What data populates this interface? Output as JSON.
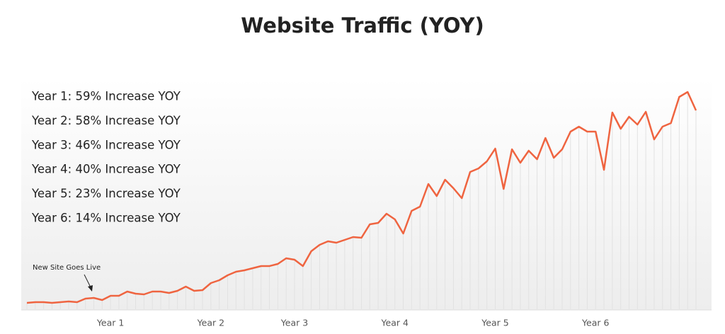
{
  "chart_data": {
    "type": "line",
    "title": "Website Traffic (YOY)",
    "annotations": [
      "Year 1:  59% Increase YOY",
      "Year 2:  58% Increase YOY",
      "Year 3:  46% Increase YOY",
      "Year 4:  40% Increase YOY",
      "Year 5:  23% Increase YOY",
      "Year 6:  14% Increase YOY"
    ],
    "callout": "New Site Goes Live",
    "categories": [
      null,
      null,
      null,
      null,
      null,
      null,
      null,
      null,
      null,
      null,
      "Year 1",
      null,
      null,
      null,
      null,
      null,
      null,
      null,
      null,
      null,
      null,
      null,
      "Year 2",
      null,
      null,
      null,
      null,
      null,
      null,
      null,
      null,
      null,
      "Year 3",
      null,
      null,
      null,
      null,
      null,
      null,
      null,
      null,
      null,
      null,
      null,
      "Year 4",
      null,
      null,
      null,
      null,
      null,
      null,
      null,
      null,
      null,
      null,
      null,
      "Year 5",
      null,
      null,
      null,
      null,
      null,
      null,
      null,
      null,
      null,
      null,
      null,
      "Year 6",
      null,
      null,
      null,
      null,
      null,
      null,
      null,
      null,
      null,
      null,
      null,
      null
    ],
    "series": [
      {
        "name": "Traffic",
        "color": "#ef6440",
        "values": [
          9,
          10,
          10,
          9,
          10,
          11,
          10,
          15,
          16,
          13,
          19,
          19,
          25,
          22,
          21,
          25,
          25,
          23,
          26,
          32,
          26,
          27,
          37,
          41,
          48,
          53,
          55,
          58,
          61,
          61,
          64,
          72,
          70,
          61,
          82,
          91,
          96,
          94,
          98,
          102,
          101,
          120,
          122,
          135,
          127,
          107,
          139,
          145,
          177,
          160,
          183,
          171,
          157,
          194,
          199,
          209,
          227,
          170,
          226,
          207,
          224,
          212,
          242,
          214,
          226,
          251,
          258,
          251,
          251,
          197,
          278,
          255,
          272,
          261,
          279,
          240,
          258,
          263,
          300,
          307,
          281
        ]
      }
    ],
    "ylim": [
      0,
      320
    ]
  }
}
